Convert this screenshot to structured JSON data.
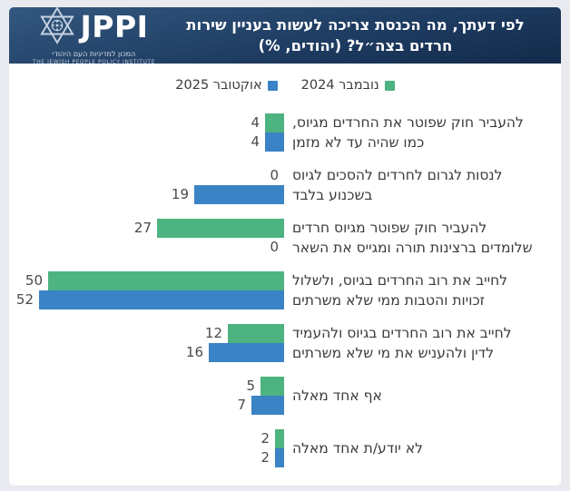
{
  "header": {
    "logo": {
      "name": "JPPI",
      "hebrew_line": "המכון למדיניות העם היהודי",
      "english_line": "THE JEWISH PEOPLE POLICY INSTITUTE",
      "icon": "star-of-david-icon"
    },
    "title_line1": "לפי דעתך, מה הכנסת צריכה לעשות בעניין שירות",
    "title_line2": "חרדים בצה״ל? (יהודים, %)"
  },
  "colors": {
    "green": "#4db381",
    "blue": "#3a83c5",
    "banner_top": "#33587f",
    "banner_bottom": "#122a4a",
    "page_background": "#e9eaef",
    "card_background": "#ffffff",
    "text": "#3b3b3b"
  },
  "chart_data": {
    "type": "bar",
    "orientation": "horizontal-rtl",
    "title": "לפי דעתך, מה הכנסת צריכה לעשות בעניין שירות חרדים בצה״ל? (יהודים, %)",
    "legend_position": "top-center",
    "grid": false,
    "xlim": [
      0,
      55
    ],
    "value_labels": true,
    "categories": [
      [
        "להעביר חוק שפוטר את החרדים מגיוס,",
        "כמו שהיה עד לא מזמן"
      ],
      [
        "לנסות לגרום לחרדים להסכים לגיוס",
        "בשכנוע בלבד"
      ],
      [
        "להעביר חוק שפוטר מגיוס חרדים",
        "שלומדים ברצינות תורה ומגייס את השאר"
      ],
      [
        "לחייב את רוב החרדים בגיוס, ולשלול",
        "זכויות והטבות ממי שלא משרתים"
      ],
      [
        "לחייב את רוב החרדים בגיוס ולהעמיד",
        "לדין ולהעניש את מי שלא משרתים"
      ],
      [
        "אף אחד מאלה"
      ],
      [
        "לא יודע/ת אחד מאלה"
      ]
    ],
    "series": [
      {
        "name": "נובמבר 2024",
        "color": "#4db381",
        "values": [
          4,
          0,
          27,
          50,
          12,
          5,
          2
        ]
      },
      {
        "name": "אוקטובר 2025",
        "color": "#3a83c5",
        "values": [
          4,
          19,
          0,
          52,
          16,
          7,
          2
        ]
      }
    ]
  }
}
